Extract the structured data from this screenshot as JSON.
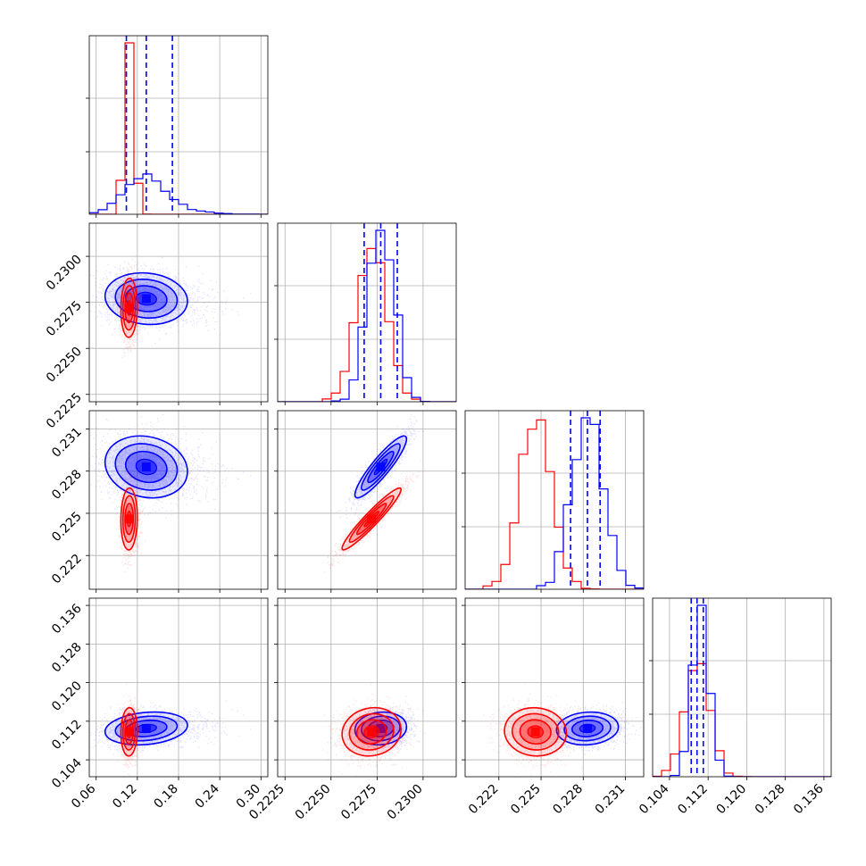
{
  "colors": {
    "series_a": "#0000ff",
    "series_b": "#ff0000",
    "grid": "#b0b0b0"
  },
  "chart_data": {
    "type": "corner",
    "grid": true,
    "parameters": [
      {
        "range": [
          0.05,
          0.31
        ],
        "ticks": [
          "0.06",
          "0.12",
          "0.18",
          "0.24",
          "0.30"
        ]
      },
      {
        "range": [
          0.2221,
          0.2318
        ],
        "ticks": [
          "0.2225",
          "0.2250",
          "0.2275",
          "0.2300"
        ]
      },
      {
        "range": [
          0.2196,
          0.2323
        ],
        "ticks": [
          "0.222",
          "0.225",
          "0.228",
          "0.231"
        ]
      },
      {
        "range": [
          0.1005,
          0.1375
        ],
        "ticks": [
          "0.104",
          "0.112",
          "0.120",
          "0.128",
          "0.136"
        ]
      }
    ],
    "series": [
      {
        "color": "#0000ff",
        "means": [
          0.133,
          0.2277,
          0.2283,
          0.1105
        ],
        "sigmas": [
          0.03,
          0.0007,
          0.0011,
          0.0017
        ],
        "correlations": [
          [
            0,
            1,
            -0.1
          ],
          [
            0,
            2,
            -0.15
          ],
          [
            0,
            3,
            0.2
          ],
          [
            1,
            2,
            0.9
          ],
          [
            1,
            3,
            0.1
          ],
          [
            2,
            3,
            0.1
          ]
        ],
        "quantiles": [
          [
            0.104,
            0.133,
            0.171
          ],
          [
            0.2268,
            0.2277,
            0.2286
          ],
          [
            0.2271,
            0.2283,
            0.2292
          ],
          [
            0.1085,
            0.1097,
            0.111
          ]
        ]
      },
      {
        "color": "#ff0000",
        "means": [
          0.108,
          0.2272,
          0.2246,
          0.1098
        ],
        "sigmas": [
          0.006,
          0.0008,
          0.0011,
          0.0025
        ],
        "correlations": [
          [
            0,
            1,
            0.05
          ],
          [
            0,
            2,
            0.05
          ],
          [
            0,
            3,
            0.05
          ],
          [
            1,
            2,
            0.95
          ],
          [
            1,
            3,
            0.1
          ],
          [
            2,
            3,
            -0.05
          ]
        ],
        "quantiles": []
      }
    ]
  }
}
